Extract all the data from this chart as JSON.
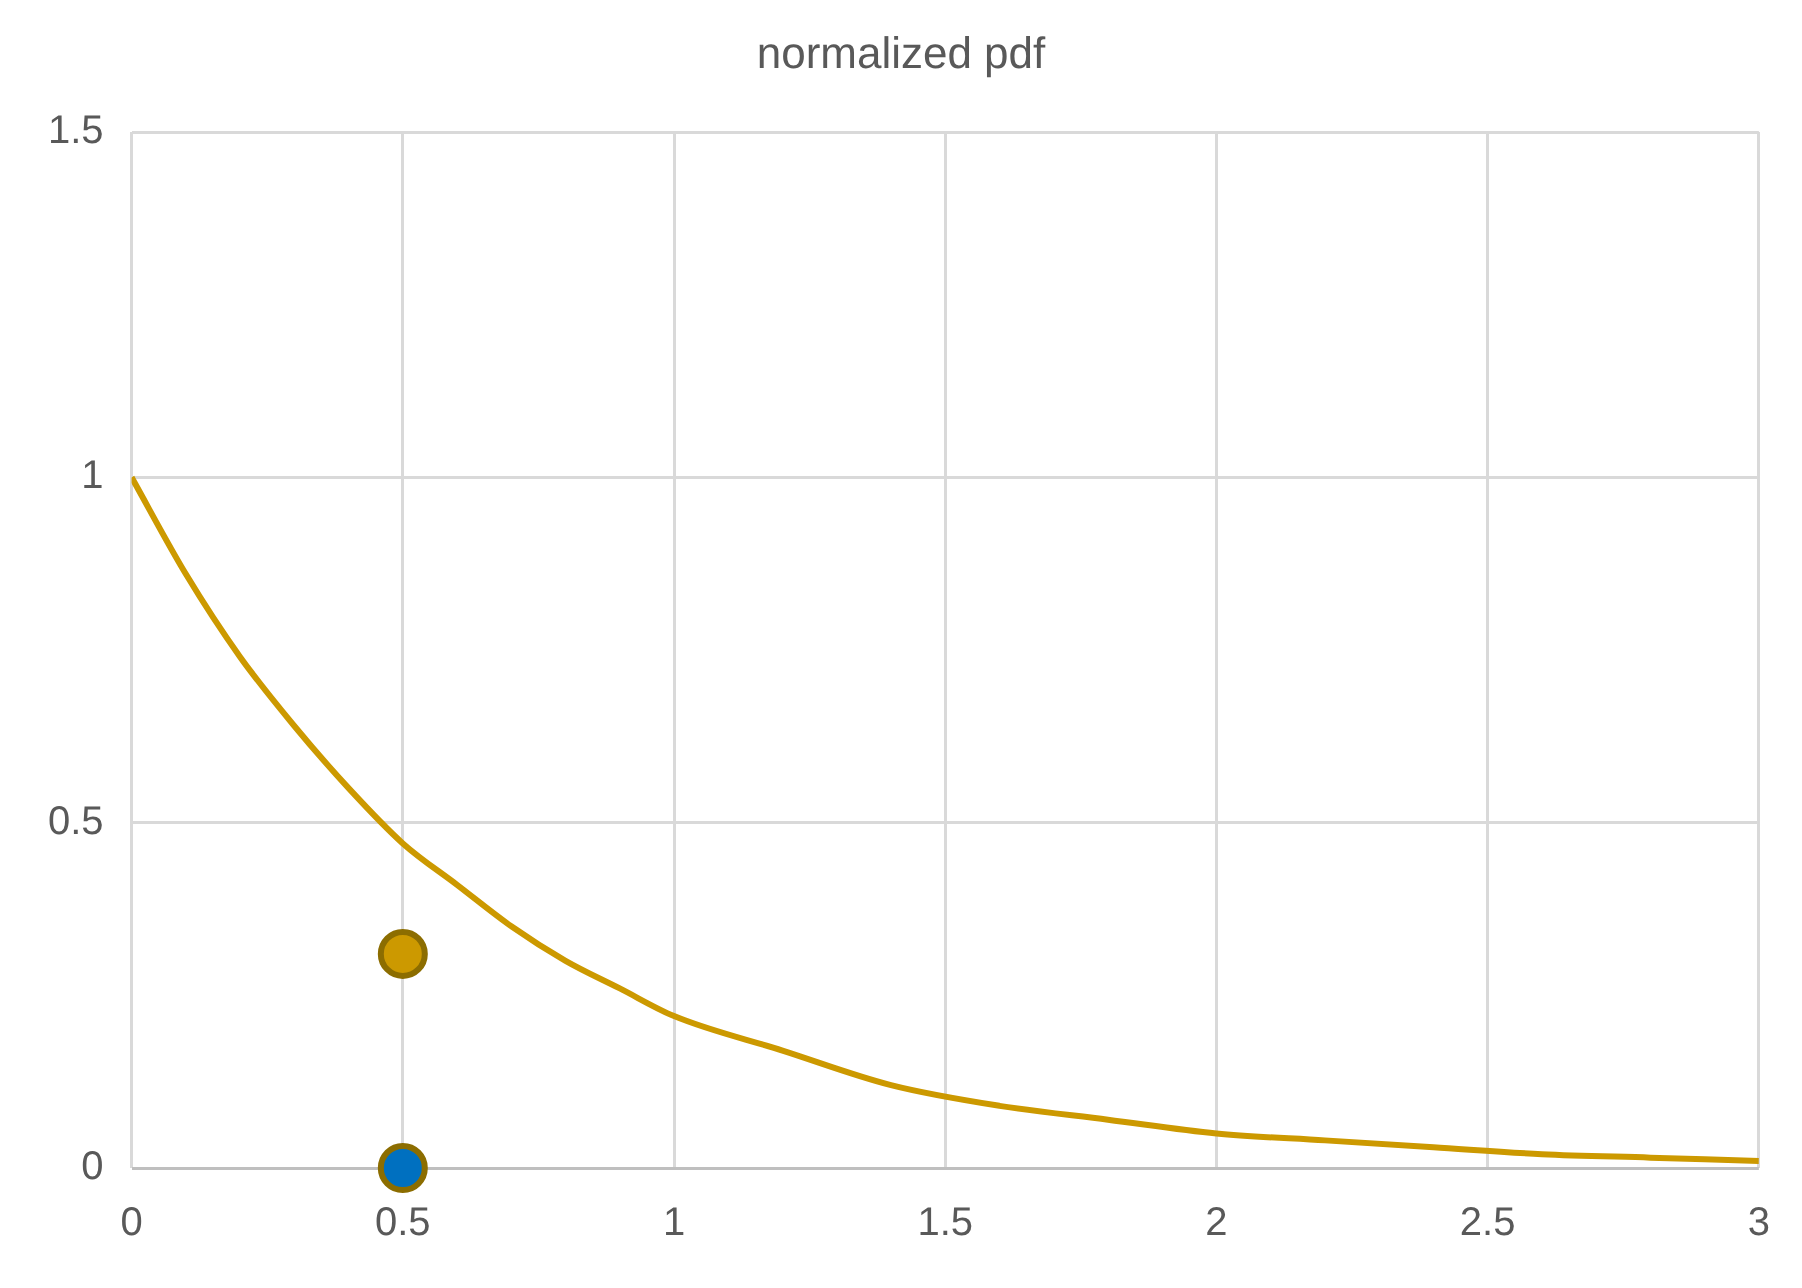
{
  "chart_data": {
    "type": "line",
    "title": "normalized pdf",
    "xlim": [
      0,
      3
    ],
    "xticks": [
      0,
      0.5,
      1,
      1.5,
      2,
      2.5,
      3
    ],
    "ylim": [
      0,
      1.5
    ],
    "yticks": [
      0,
      0.5,
      1,
      1.5
    ],
    "grid": true,
    "legend": false,
    "series": [
      {
        "color": "#cc9900",
        "marker": "none",
        "x": [
          0,
          0.1,
          0.2,
          0.3,
          0.4,
          0.5,
          0.6,
          0.7,
          0.8,
          0.9,
          1,
          1.2,
          1.4,
          1.6,
          1.8,
          2,
          2.2,
          2.4,
          2.6,
          2.8,
          3
        ],
        "values": [
          1,
          0.86,
          0.74,
          0.64,
          0.55,
          0.47,
          0.41,
          0.35,
          0.3,
          0.26,
          0.22,
          0.17,
          0.12,
          0.09,
          0.07,
          0.05,
          0.04,
          0.03,
          0.02,
          0.015,
          0.01
        ]
      },
      {
        "type": "scatter",
        "color": "#cc9900",
        "marker": "circle",
        "x": [
          0.5
        ],
        "values": [
          0.31
        ]
      },
      {
        "type": "scatter",
        "color": "#0070c0",
        "marker": "circle",
        "x": [
          0.5
        ],
        "values": [
          0
        ]
      }
    ]
  }
}
